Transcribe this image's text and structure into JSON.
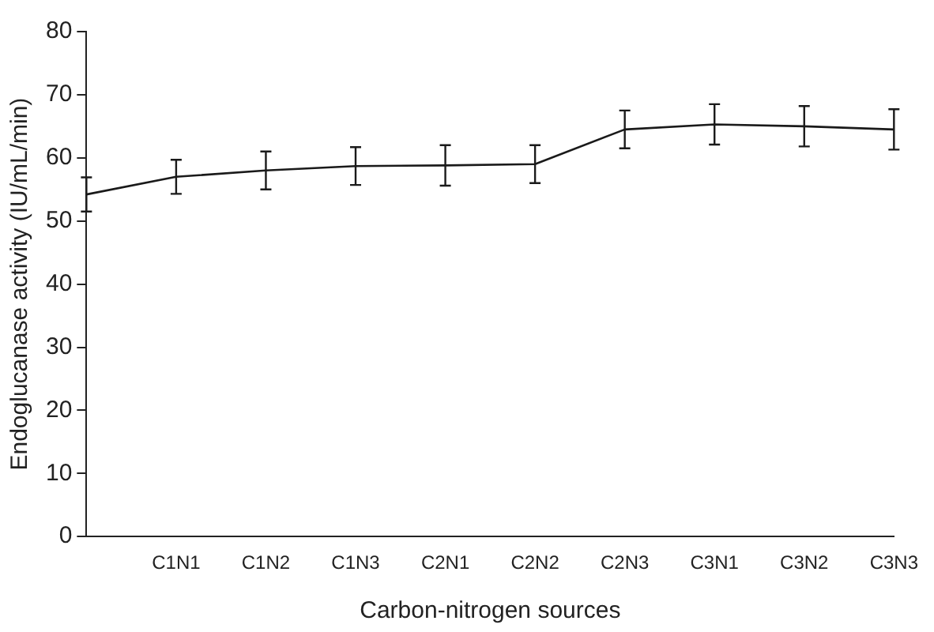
{
  "chart_data": {
    "type": "line",
    "xlabel": "Carbon-nitrogen sources",
    "ylabel": "Endoglucanase activity (IU/mL/min)",
    "categories": [
      null,
      "C1N1",
      "C1N2",
      "C1N3",
      "C2N1",
      "C2N2",
      "C2N3",
      "C3N1",
      "C3N2",
      "C3N3"
    ],
    "series": [
      {
        "color": "#1a1a1a",
        "values": [
          54.2,
          57,
          58,
          58.7,
          58.8,
          59,
          64.5,
          65.3,
          65,
          64.5
        ],
        "errors": [
          2.7,
          2.7,
          3,
          3,
          3.2,
          3,
          3,
          3.2,
          3.2,
          3.2
        ]
      }
    ],
    "ylim": [
      0,
      80
    ],
    "yticks": [
      0,
      10,
      20,
      30,
      40,
      50,
      60,
      70,
      80
    ],
    "grid": false,
    "legend": false,
    "marker": "none",
    "line_style": "solid"
  }
}
